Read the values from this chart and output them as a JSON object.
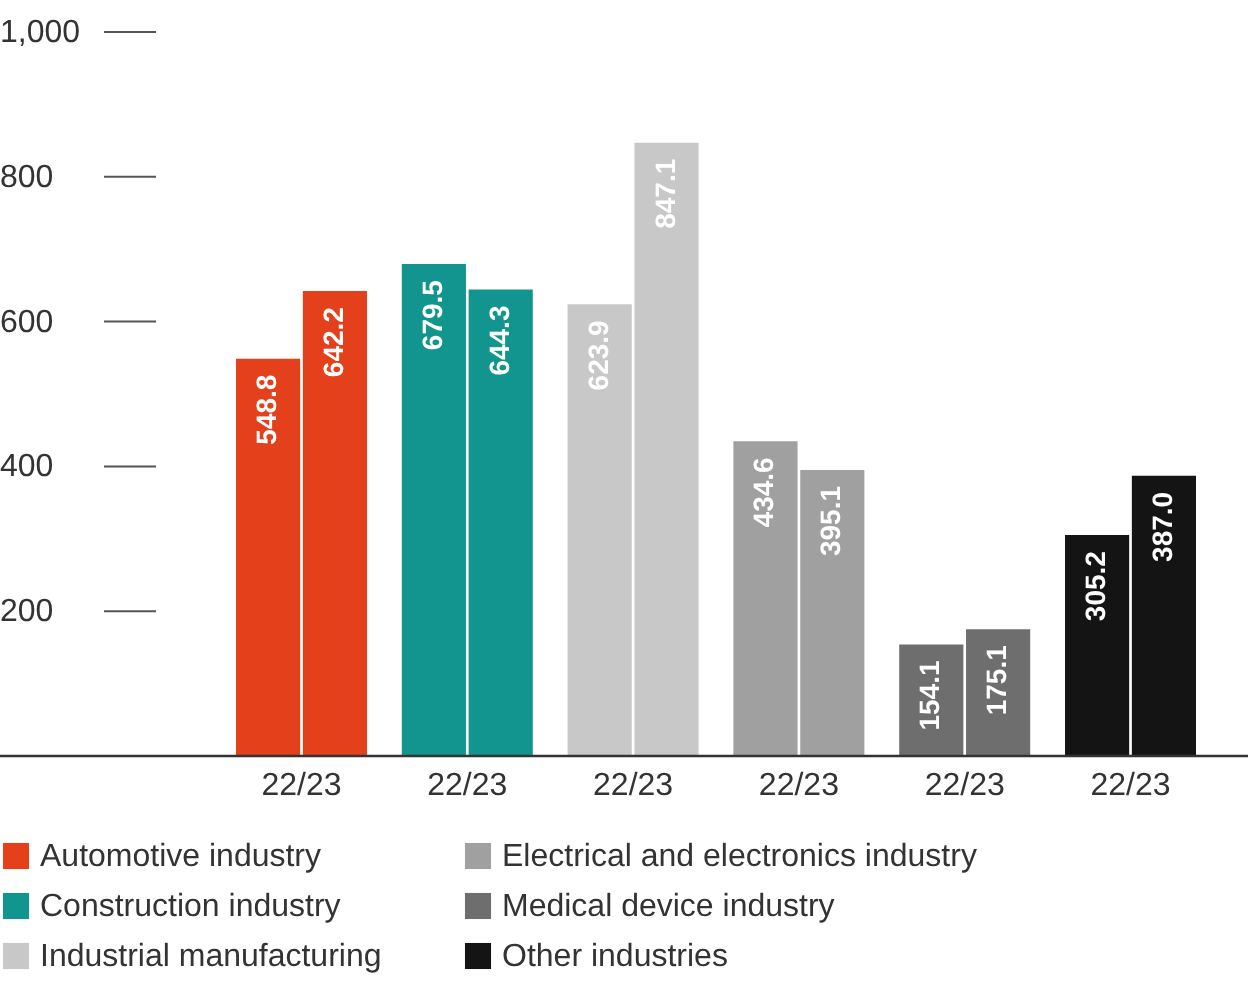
{
  "chart_data": {
    "type": "bar",
    "categories": [
      "22/23",
      "22/23",
      "22/23",
      "22/23",
      "22/23",
      "22/23"
    ],
    "ylim": [
      0,
      1000
    ],
    "yticks": [
      200,
      400,
      600,
      800,
      {
        "value": 1000,
        "label": "1,000"
      }
    ],
    "legend": "bottom",
    "series": [
      {
        "name": "Automotive industry",
        "color": "#e3401b",
        "values": [
          548.8,
          null,
          null,
          null,
          null,
          null
        ],
        "value_labels": [
          "548.8",
          null,
          null,
          null,
          null,
          null
        ]
      },
      {
        "color": "#e3401b",
        "values": [
          642.2,
          null,
          null,
          null,
          null,
          null
        ],
        "value_labels": [
          "642.2",
          null,
          null,
          null,
          null,
          null
        ]
      },
      {
        "name": "Construction industry",
        "color": "#12958f",
        "values": [
          null,
          679.5,
          null,
          null,
          null,
          null
        ],
        "value_labels": [
          null,
          "679.5",
          null,
          null,
          null,
          null
        ]
      },
      {
        "color": "#12958f",
        "values": [
          null,
          644.3,
          null,
          null,
          null,
          null
        ],
        "value_labels": [
          null,
          "644.3",
          null,
          null,
          null,
          null
        ]
      },
      {
        "name": "Industrial manufacturing",
        "color": "#c8c8c8",
        "values": [
          null,
          null,
          623.9,
          null,
          null,
          null
        ],
        "value_labels": [
          null,
          null,
          "623.9",
          null,
          null,
          null
        ]
      },
      {
        "color": "#c8c8c8",
        "values": [
          null,
          null,
          847.1,
          null,
          null,
          null
        ],
        "value_labels": [
          null,
          null,
          "847.1",
          null,
          null,
          null
        ]
      },
      {
        "name": "Electrical and electronics industry",
        "color": "#a0a0a0",
        "values": [
          null,
          null,
          null,
          434.6,
          null,
          null
        ],
        "value_labels": [
          null,
          null,
          null,
          "434.6",
          null,
          null
        ]
      },
      {
        "color": "#a0a0a0",
        "values": [
          null,
          null,
          null,
          395.1,
          null,
          null
        ],
        "value_labels": [
          null,
          null,
          null,
          "395.1",
          null,
          null
        ]
      },
      {
        "name": "Medical device industry",
        "color": "#6e6e6e",
        "values": [
          null,
          null,
          null,
          null,
          154.1,
          null
        ],
        "value_labels": [
          null,
          null,
          null,
          null,
          "154.1",
          null
        ]
      },
      {
        "color": "#6e6e6e",
        "values": [
          null,
          null,
          null,
          null,
          175.1,
          null
        ],
        "value_labels": [
          null,
          null,
          null,
          null,
          "175.1",
          null
        ]
      },
      {
        "name": "Other industries",
        "color": "#141414",
        "values": [
          null,
          null,
          null,
          null,
          null,
          305.2
        ],
        "value_labels": [
          null,
          null,
          null,
          null,
          null,
          "305.2"
        ]
      },
      {
        "color": "#141414",
        "values": [
          null,
          null,
          null,
          null,
          null,
          387.0
        ],
        "value_labels": [
          null,
          null,
          null,
          null,
          null,
          "387.0"
        ]
      }
    ]
  }
}
